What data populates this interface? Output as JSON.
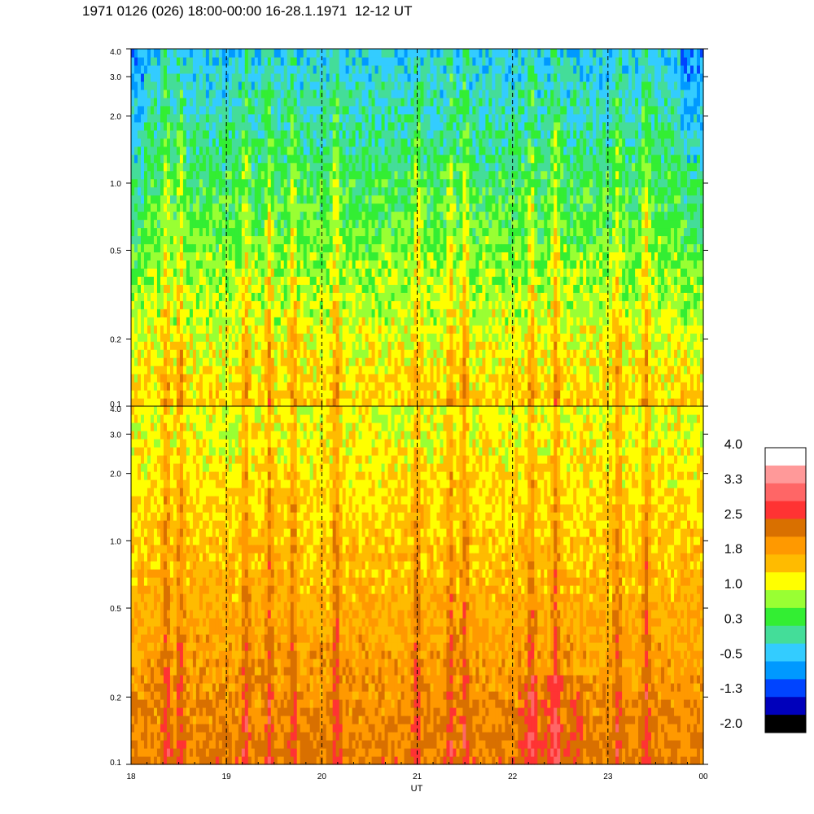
{
  "title": "1971 0126 (026) 18:00-00:00 16-28.1.1971  12-12 UT",
  "chart_data": [
    {
      "type": "heatmap",
      "panel": "top",
      "x_tick_labels": [
        "18",
        "19",
        "20",
        "21",
        "22",
        "23",
        "00"
      ],
      "y_tick_labels": [
        "0.1",
        "0.2",
        "0.5",
        "1.0",
        "2.0",
        "3.0",
        "4.0"
      ],
      "y_tick_values": [
        0.1,
        0.2,
        0.5,
        1.0,
        2.0,
        3.0,
        4.0
      ],
      "y_scale": "log",
      "ylim": [
        0.1,
        4.0
      ],
      "x_range_hours": [
        18,
        24
      ],
      "dominant_levels": "low frequencies yellow/green (~0.3 to 1.8), high frequencies cyan/blue (~-1.3 to 0.3)"
    },
    {
      "type": "heatmap",
      "panel": "bottom",
      "x_tick_labels": [
        "18",
        "19",
        "20",
        "21",
        "22",
        "23",
        "00"
      ],
      "y_tick_labels": [
        "0.1",
        "0.2",
        "0.5",
        "1.0",
        "2.0",
        "3.0",
        "4.0"
      ],
      "y_tick_values": [
        0.1,
        0.2,
        0.5,
        1.0,
        2.0,
        3.0,
        4.0
      ],
      "y_scale": "log",
      "ylim": [
        0.1,
        4.0
      ],
      "x_range_hours": [
        18,
        24
      ],
      "xlabel": "UT",
      "dominant_levels": "orange/dark orange (~1.8 to 2.5) at low frequencies, yellow/green near top"
    }
  ],
  "colorbar": {
    "labels": [
      "4.0",
      "3.3",
      "2.5",
      "1.8",
      "1.0",
      "0.3",
      "-0.5",
      "-1.3",
      "-2.0"
    ],
    "colors": [
      "#ffffff",
      "#ff9999",
      "#ff6666",
      "#ff3333",
      "#d97000",
      "#ff9900",
      "#ffbb00",
      "#ffff00",
      "#99ff33",
      "#33ee33",
      "#44dd99",
      "#33ccff",
      "#0099ff",
      "#0044ff",
      "#0000bb",
      "#000000"
    ]
  },
  "gridlines": "dashed vertical at each hour"
}
